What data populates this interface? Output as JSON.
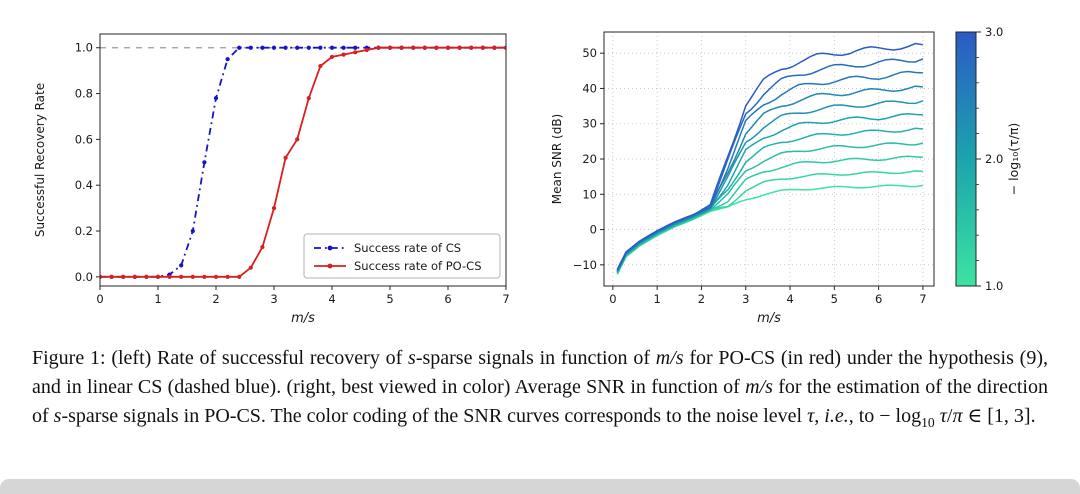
{
  "figure": {
    "caption_segments": [
      {
        "t": "Figure 1: (left) Rate of successful recovery of "
      },
      {
        "t": "s",
        "i": true
      },
      {
        "t": "-sparse signals in function of "
      },
      {
        "t": "m/s",
        "i": true
      },
      {
        "t": " for PO-CS (in red) under the hypothesis (9), and in linear CS (dashed blue). (right, best viewed in color) Average SNR in function of "
      },
      {
        "t": "m/s",
        "i": true
      },
      {
        "t": " for the estimation of the direction of "
      },
      {
        "t": "s",
        "i": true
      },
      {
        "t": "-sparse signals in PO-CS. The color coding of the SNR curves corresponds to the noise level "
      },
      {
        "t": "τ",
        "i": true
      },
      {
        "t": ", "
      },
      {
        "t": "i.e.",
        "i": true
      },
      {
        "t": ", to "
      },
      {
        "t": "− log"
      },
      {
        "t": "10",
        "sub": true
      },
      {
        "t": " "
      },
      {
        "t": "τ",
        "i": true
      },
      {
        "t": "/"
      },
      {
        "t": "π",
        "i": true
      },
      {
        "t": " ∈ [1, 3]."
      }
    ]
  },
  "chart_data": [
    {
      "id": "recovery",
      "type": "line",
      "title": "",
      "xlabel": "m/s",
      "ylabel": "Successful Recovery Rate",
      "xlim": [
        0,
        7
      ],
      "ylim": [
        -0.04,
        1.06
      ],
      "xticks": [
        0,
        1,
        2,
        3,
        4,
        5,
        6,
        7
      ],
      "xtick_labels": [
        "0",
        "1",
        "2",
        "3",
        "4",
        "5",
        "6",
        "7"
      ],
      "yticks": [
        0,
        0.2,
        0.4,
        0.6,
        0.8,
        1
      ],
      "ytick_labels": [
        "0.0",
        "0.2",
        "0.4",
        "0.6",
        "0.8",
        "1.0"
      ],
      "grid": false,
      "hline": {
        "y": 1.0,
        "color": "#999999",
        "style": "dashed"
      },
      "x": [
        0,
        0.2,
        0.4,
        0.6,
        0.8,
        1,
        1.2,
        1.4,
        1.6,
        1.8,
        2,
        2.2,
        2.4,
        2.6,
        2.8,
        3,
        3.2,
        3.4,
        3.6,
        3.8,
        4,
        4.2,
        4.4,
        4.6,
        4.8,
        5,
        5.2,
        5.4,
        5.6,
        5.8,
        6,
        6.2,
        6.4,
        6.6,
        6.8,
        7
      ],
      "series": [
        {
          "name": "Success rate of CS",
          "color": "#1414c8",
          "linestyle": "dashdot",
          "marker": "dot",
          "values": [
            0,
            0,
            0,
            0,
            0,
            0,
            0.01,
            0.05,
            0.2,
            0.5,
            0.78,
            0.95,
            1,
            1,
            1,
            1,
            1,
            1,
            1,
            1,
            1,
            1,
            1,
            1,
            1,
            1,
            1,
            1,
            1,
            1,
            1,
            1,
            1,
            1,
            1,
            1
          ]
        },
        {
          "name": "Success rate of PO-CS",
          "color": "#d91f1f",
          "linestyle": "solid",
          "marker": "dot",
          "values": [
            0,
            0,
            0,
            0,
            0,
            0,
            0,
            0,
            0,
            0,
            0,
            0,
            0,
            0.04,
            0.13,
            0.3,
            0.52,
            0.6,
            0.78,
            0.92,
            0.96,
            0.97,
            0.98,
            0.99,
            1,
            1,
            1,
            1,
            1,
            1,
            1,
            1,
            1,
            1,
            1,
            1
          ]
        }
      ],
      "legend": {
        "position": "lower right"
      }
    },
    {
      "id": "snr",
      "type": "line",
      "title": "",
      "xlabel": "m/s",
      "ylabel": "Mean SNR (dB)",
      "xlim": [
        -0.2,
        7.25
      ],
      "ylim": [
        -16,
        56
      ],
      "xticks": [
        0,
        1,
        2,
        3,
        4,
        5,
        6,
        7
      ],
      "xtick_labels": [
        "0",
        "1",
        "2",
        "3",
        "4",
        "5",
        "6",
        "7"
      ],
      "yticks": [
        -10,
        0,
        10,
        20,
        30,
        40,
        50
      ],
      "ytick_labels": [
        "−10",
        "0",
        "10",
        "20",
        "30",
        "40",
        "50"
      ],
      "grid": true,
      "x": [
        0.1,
        0.3,
        0.6,
        1.0,
        1.4,
        1.8,
        2.2,
        2.6,
        3.0,
        3.4,
        3.8,
        4.2,
        4.6,
        5.0,
        5.5,
        6.0,
        6.5,
        7.0
      ],
      "series": [
        {
          "level": 1.0,
          "values": [
            -12.7,
            -7.7,
            -4.7,
            -1.7,
            0.8,
            2.8,
            5.3,
            6.2,
            8.5,
            10.0,
            10.9,
            11.4,
            11.7,
            11.9,
            12.1,
            12.2,
            12.4,
            12.5
          ]
        },
        {
          "level": 1.2,
          "values": [
            -12.6,
            -7.6,
            -4.6,
            -1.6,
            0.9,
            2.9,
            5.4,
            6.6,
            11.2,
            13.2,
            14.4,
            15.0,
            15.4,
            15.7,
            15.9,
            16.1,
            16.3,
            16.5
          ]
        },
        {
          "level": 1.4,
          "values": [
            -12.4,
            -7.4,
            -4.4,
            -1.4,
            1.1,
            3.1,
            5.6,
            8.2,
            13.9,
            16.4,
            17.8,
            18.7,
            19.2,
            19.5,
            19.8,
            20.0,
            20.3,
            20.5
          ]
        },
        {
          "level": 1.6,
          "values": [
            -12.3,
            -7.3,
            -4.3,
            -1.3,
            1.2,
            3.2,
            5.7,
            9.8,
            16.7,
            19.6,
            21.3,
            22.3,
            22.9,
            23.3,
            23.6,
            23.9,
            24.3,
            24.5
          ]
        },
        {
          "level": 1.8,
          "values": [
            -12.1,
            -7.1,
            -4.1,
            -1.1,
            1.4,
            3.4,
            5.9,
            11.4,
            19.4,
            22.8,
            24.8,
            25.9,
            26.6,
            27.1,
            27.5,
            27.8,
            28.2,
            28.5
          ]
        },
        {
          "level": 2.0,
          "values": [
            -12.0,
            -7.0,
            -4.0,
            -1.0,
            1.5,
            3.5,
            6.0,
            13.0,
            22.1,
            26.0,
            28.3,
            29.6,
            30.4,
            30.9,
            31.4,
            31.7,
            32.2,
            32.5
          ]
        },
        {
          "level": 2.2,
          "values": [
            -11.9,
            -6.9,
            -3.9,
            -0.9,
            1.6,
            3.6,
            6.1,
            14.6,
            24.8,
            29.2,
            31.8,
            33.2,
            34.1,
            34.7,
            35.2,
            35.6,
            36.1,
            36.5
          ]
        },
        {
          "level": 2.4,
          "values": [
            -11.7,
            -6.7,
            -3.7,
            -0.7,
            1.8,
            3.8,
            6.3,
            16.2,
            27.5,
            32.3,
            35.1,
            36.8,
            37.8,
            38.4,
            39.0,
            39.4,
            40.0,
            40.4
          ]
        },
        {
          "level": 2.6,
          "values": [
            -11.6,
            -6.6,
            -3.6,
            -0.6,
            1.9,
            3.9,
            6.4,
            17.8,
            30.2,
            35.5,
            38.6,
            40.4,
            41.5,
            42.2,
            42.8,
            43.3,
            44.0,
            44.4
          ]
        },
        {
          "level": 2.8,
          "values": [
            -11.4,
            -6.4,
            -3.4,
            -0.4,
            2.1,
            4.1,
            6.6,
            19.4,
            32.9,
            38.7,
            42.1,
            44.0,
            45.3,
            46.0,
            46.7,
            47.2,
            47.9,
            48.4
          ]
        },
        {
          "level": 3.0,
          "values": [
            -11.3,
            -6.3,
            -3.3,
            -0.3,
            2.2,
            4.2,
            6.7,
            21.0,
            35.6,
            41.9,
            45.6,
            47.7,
            49.0,
            49.8,
            50.8,
            51.1,
            51.9,
            52.4
          ]
        }
      ],
      "colormap": {
        "domain": [
          1,
          3
        ],
        "stops": [
          "#3de3a1",
          "#1ba4ad",
          "#2b5bc4"
        ]
      },
      "colorbar": {
        "label": "− log₁₀(τ/π)",
        "ticks": [
          1.0,
          2.0,
          3.0
        ],
        "tick_labels": [
          "1.0",
          "2.0",
          "3.0"
        ]
      }
    }
  ],
  "bottom_bar": {
    "color": "#d6d6d6"
  }
}
